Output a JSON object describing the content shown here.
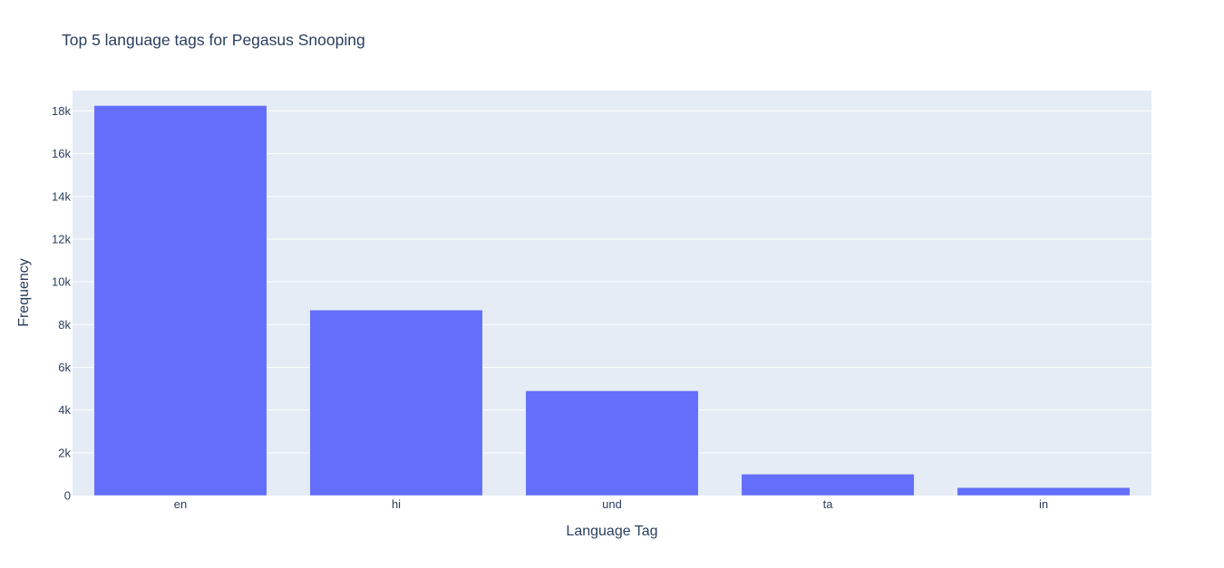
{
  "chart_data": {
    "type": "bar",
    "title": "Top 5 language tags for Pegasus Snooping",
    "xlabel": "Language Tag",
    "ylabel": "Frequency",
    "categories": [
      "en",
      "hi",
      "und",
      "ta",
      "in"
    ],
    "values": [
      18250,
      8680,
      4900,
      1000,
      370
    ],
    "ylim": [
      0,
      18950
    ],
    "yticks": [
      0,
      2000,
      4000,
      6000,
      8000,
      10000,
      12000,
      14000,
      16000,
      18000
    ],
    "ytick_labels": [
      "0",
      "2k",
      "4k",
      "6k",
      "8k",
      "10k",
      "12k",
      "14k",
      "16k",
      "18k"
    ],
    "grid": true,
    "legend": "none",
    "colors": {
      "bar": "#636efa",
      "plot_bg": "#e5ecf6",
      "grid": "#ffffff",
      "text": "#2a3f5f"
    }
  }
}
